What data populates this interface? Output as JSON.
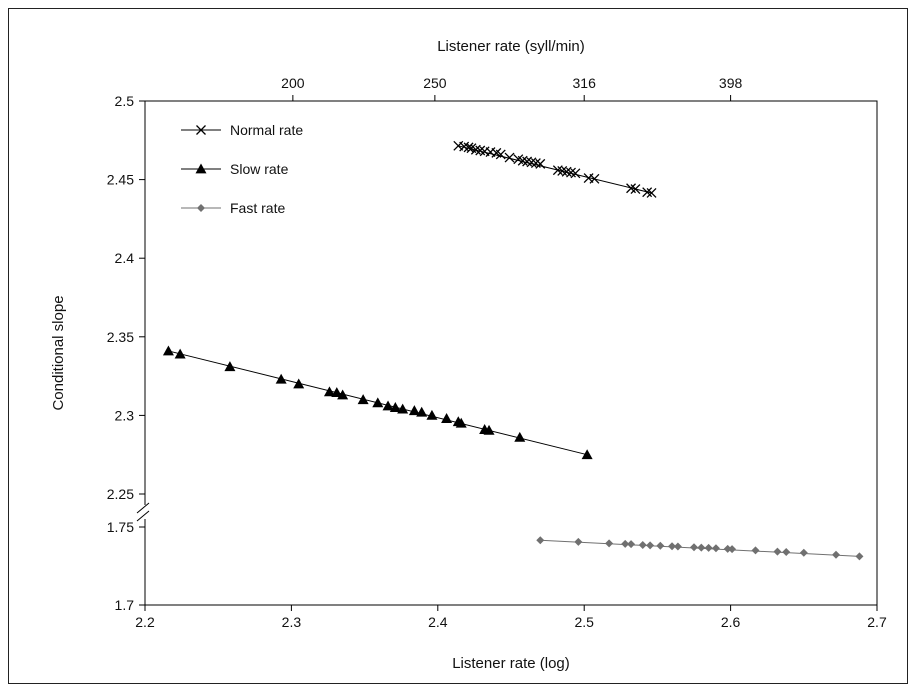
{
  "chart_data": {
    "type": "scatter",
    "xlabel": "Listener rate (log)",
    "x2label": "Listener rate (syll/min)",
    "ylabel": "Conditional slope",
    "xlim": [
      2.2,
      2.7
    ],
    "xticks": [
      "2.2",
      "2.3",
      "2.4",
      "2.5",
      "2.6",
      "2.7"
    ],
    "x2ticks": [
      {
        "label": "200",
        "at": 2.301
      },
      {
        "label": "250",
        "at": 2.398
      },
      {
        "label": "316",
        "at": 2.5
      },
      {
        "label": "398",
        "at": 2.6
      }
    ],
    "ylim_upper": [
      2.25,
      2.5
    ],
    "ylim_lower": [
      1.7,
      1.75
    ],
    "yticks_upper": [
      "2.25",
      "2.3",
      "2.35",
      "2.4",
      "2.45",
      "2.5"
    ],
    "yticks_lower": [
      "1.7",
      "1.75"
    ],
    "axis_break": true,
    "legend_position": "top-left",
    "series": [
      {
        "name": "Normal rate",
        "marker": "x",
        "color": "#000000",
        "x": [
          2.414,
          2.418,
          2.421,
          2.423,
          2.426,
          2.429,
          2.432,
          2.436,
          2.44,
          2.443,
          2.449,
          2.455,
          2.458,
          2.461,
          2.464,
          2.467,
          2.47,
          2.482,
          2.485,
          2.488,
          2.491,
          2.494,
          2.503,
          2.507,
          2.532,
          2.535,
          2.543,
          2.546
        ],
        "y": [
          2.4715,
          2.471,
          2.4705,
          2.47,
          2.469,
          2.4685,
          2.468,
          2.4675,
          2.467,
          2.466,
          2.464,
          2.463,
          2.462,
          2.4615,
          2.461,
          2.4605,
          2.46,
          2.456,
          2.4555,
          2.455,
          2.4545,
          2.454,
          2.451,
          2.4505,
          2.4445,
          2.444,
          2.442,
          2.4415
        ]
      },
      {
        "name": "Slow rate",
        "marker": "triangle",
        "color": "#000000",
        "x": [
          2.216,
          2.224,
          2.258,
          2.293,
          2.305,
          2.326,
          2.331,
          2.335,
          2.349,
          2.359,
          2.366,
          2.371,
          2.376,
          2.384,
          2.389,
          2.396,
          2.406,
          2.414,
          2.416,
          2.432,
          2.435,
          2.456,
          2.502
        ],
        "y": [
          2.341,
          2.339,
          2.331,
          2.323,
          2.32,
          2.315,
          2.3145,
          2.313,
          2.31,
          2.308,
          2.306,
          2.305,
          2.304,
          2.303,
          2.302,
          2.3,
          2.298,
          2.296,
          2.295,
          2.291,
          2.2905,
          2.286,
          2.275
        ]
      },
      {
        "name": "Fast rate",
        "marker": "diamond",
        "color": "#707070",
        "x": [
          2.47,
          2.496,
          2.517,
          2.528,
          2.532,
          2.54,
          2.545,
          2.552,
          2.56,
          2.564,
          2.575,
          2.58,
          2.585,
          2.59,
          2.598,
          2.601,
          2.617,
          2.632,
          2.638,
          2.65,
          2.672,
          2.688
        ],
        "y": [
          1.7415,
          1.7405,
          1.7395,
          1.7392,
          1.739,
          1.7385,
          1.7382,
          1.738,
          1.7377,
          1.7375,
          1.737,
          1.7368,
          1.7366,
          1.7364,
          1.736,
          1.7358,
          1.735,
          1.7342,
          1.734,
          1.7335,
          1.7322,
          1.7312
        ]
      }
    ]
  }
}
